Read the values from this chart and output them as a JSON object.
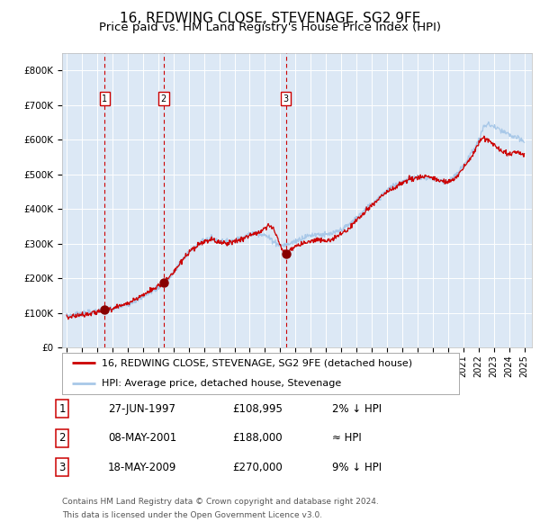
{
  "title": "16, REDWING CLOSE, STEVENAGE, SG2 9FE",
  "subtitle": "Price paid vs. HM Land Registry's House Price Index (HPI)",
  "ylim": [
    0,
    850000
  ],
  "yticks": [
    0,
    100000,
    200000,
    300000,
    400000,
    500000,
    600000,
    700000,
    800000
  ],
  "ytick_labels": [
    "£0",
    "£100K",
    "£200K",
    "£300K",
    "£400K",
    "£500K",
    "£600K",
    "£700K",
    "£800K"
  ],
  "hpi_color": "#a8c8e8",
  "price_color": "#cc0000",
  "sale_marker_color": "#880000",
  "dashed_line_color": "#cc0000",
  "plot_bg_color": "#dce8f5",
  "grid_color": "#ffffff",
  "x_start_year": 1995,
  "x_end_year": 2025,
  "sales": [
    {
      "date": 1997.49,
      "price": 108995,
      "label": "1"
    },
    {
      "date": 2001.35,
      "price": 188000,
      "label": "2"
    },
    {
      "date": 2009.37,
      "price": 270000,
      "label": "3"
    }
  ],
  "legend_line1": "16, REDWING CLOSE, STEVENAGE, SG2 9FE (detached house)",
  "legend_line2": "HPI: Average price, detached house, Stevenage",
  "table_rows": [
    [
      "1",
      "27-JUN-1997",
      "£108,995",
      "2% ↓ HPI"
    ],
    [
      "2",
      "08-MAY-2001",
      "£188,000",
      "≈ HPI"
    ],
    [
      "3",
      "18-MAY-2009",
      "£270,000",
      "9% ↓ HPI"
    ]
  ],
  "footer_line1": "Contains HM Land Registry data © Crown copyright and database right 2024.",
  "footer_line2": "This data is licensed under the Open Government Licence v3.0.",
  "title_fontsize": 11,
  "subtitle_fontsize": 9.5,
  "tick_fontsize": 7.5,
  "legend_fontsize": 8,
  "table_fontsize": 8.5,
  "footer_fontsize": 6.5
}
